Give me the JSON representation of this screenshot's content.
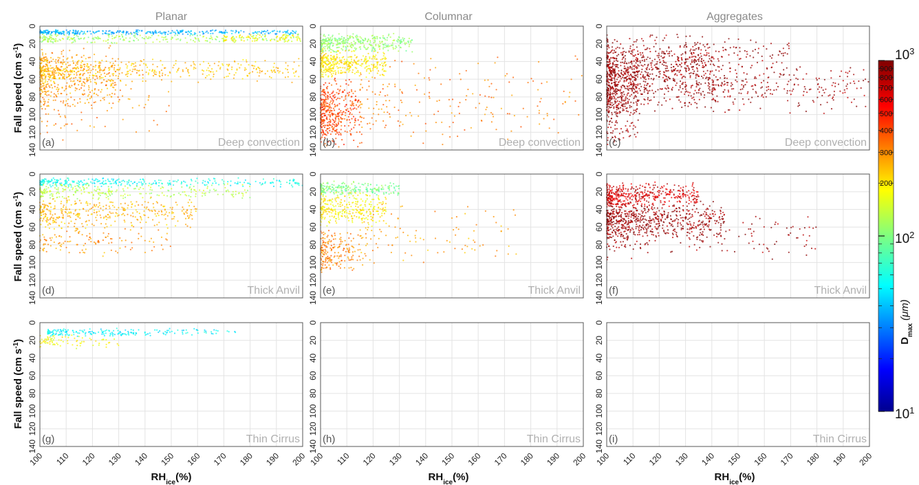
{
  "chart_data": {
    "type": "scatter",
    "layout": "3x3 small multiples",
    "columns": [
      "Planar",
      "Columnar",
      "Aggregates"
    ],
    "rows": [
      "Deep convection",
      "Thick Anvil",
      "Thin Cirrus"
    ],
    "panel_labels": [
      "(a)",
      "(b)",
      "(c)",
      "(d)",
      "(e)",
      "(f)",
      "(g)",
      "(h)",
      "(i)"
    ],
    "xlabel": "RH",
    "xlabel_sub": "ice",
    "xlabel_suffix": "(%)",
    "ylabel": "Fall speed (cm s",
    "ylabel_sup": "-1",
    "ylabel_end": ")",
    "xlim": [
      100,
      200
    ],
    "ylim": [
      0,
      140
    ],
    "y_inverted": true,
    "xticks": [
      100,
      110,
      120,
      130,
      140,
      150,
      160,
      170,
      180,
      190,
      200
    ],
    "yticks": [
      0,
      20,
      40,
      60,
      80,
      100,
      120,
      140
    ],
    "grid": true,
    "colorbar": {
      "label": "D",
      "label_sub": "max",
      "label_unit": "(μm)",
      "scale": "log",
      "range": [
        10,
        1000
      ],
      "colormap": "jet",
      "major_ticks": [
        {
          "value": 10,
          "base": "10",
          "exp": "1"
        },
        {
          "value": 100,
          "base": "10",
          "exp": "2"
        },
        {
          "value": 1000,
          "base": "10",
          "exp": "3"
        }
      ],
      "minor_tick_labels": [
        "200",
        "300",
        "400",
        "500",
        "600",
        "700",
        "800",
        "900"
      ],
      "minor_tick_values": [
        200,
        300,
        400,
        500,
        600,
        700,
        800,
        900
      ]
    },
    "panels": [
      {
        "id": "a",
        "column": "Planar",
        "regime": "Deep convection",
        "empty": false,
        "clusters": [
          {
            "x": [
              100,
              200
            ],
            "y": [
              4,
              10
            ],
            "dmax": 40,
            "n": 340
          },
          {
            "x": [
              100,
              200
            ],
            "y": [
              8,
              20
            ],
            "dmax": 120,
            "n": 260
          },
          {
            "x": [
              170,
              200
            ],
            "y": [
              8,
              18
            ],
            "dmax": 180,
            "n": 90
          },
          {
            "x": [
              100,
              130
            ],
            "y": [
              20,
              95
            ],
            "dmax": 280,
            "n": 420
          },
          {
            "x": [
              100,
              200
            ],
            "y": [
              35,
              65
            ],
            "dmax": 240,
            "n": 420
          },
          {
            "x": [
              100,
              150
            ],
            "y": [
              40,
              130
            ],
            "dmax": 320,
            "n": 110
          }
        ]
      },
      {
        "id": "b",
        "column": "Columnar",
        "regime": "Deep convection",
        "empty": false,
        "clusters": [
          {
            "x": [
              100,
              135
            ],
            "y": [
              8,
              30
            ],
            "dmax": 110,
            "n": 360
          },
          {
            "x": [
              100,
              125
            ],
            "y": [
              25,
              60
            ],
            "dmax": 200,
            "n": 380
          },
          {
            "x": [
              100,
              115
            ],
            "y": [
              55,
              140
            ],
            "dmax": 420,
            "n": 420
          },
          {
            "x": [
              115,
              200
            ],
            "y": [
              30,
              140
            ],
            "dmax": 330,
            "n": 200
          }
        ]
      },
      {
        "id": "c",
        "column": "Aggregates",
        "regime": "Deep convection",
        "empty": false,
        "clusters": [
          {
            "x": [
              100,
              140
            ],
            "y": [
              8,
              100
            ],
            "dmax": 900,
            "n": 900
          },
          {
            "x": [
              100,
              112
            ],
            "y": [
              40,
              140
            ],
            "dmax": 900,
            "n": 260
          },
          {
            "x": [
              140,
              200
            ],
            "y": [
              40,
              100
            ],
            "dmax": 900,
            "n": 260
          },
          {
            "x": [
              130,
              170
            ],
            "y": [
              10,
              50
            ],
            "dmax": 900,
            "n": 120
          }
        ]
      },
      {
        "id": "d",
        "column": "Planar",
        "regime": "Thick Anvil",
        "empty": false,
        "clusters": [
          {
            "x": [
              100,
              200
            ],
            "y": [
              4,
              15
            ],
            "dmax": 60,
            "n": 300
          },
          {
            "x": [
              100,
              180
            ],
            "y": [
              10,
              30
            ],
            "dmax": 130,
            "n": 260
          },
          {
            "x": [
              100,
              160
            ],
            "y": [
              25,
              65
            ],
            "dmax": 250,
            "n": 380
          },
          {
            "x": [
              100,
              150
            ],
            "y": [
              60,
              95
            ],
            "dmax": 290,
            "n": 120
          }
        ]
      },
      {
        "id": "e",
        "column": "Columnar",
        "regime": "Thick Anvil",
        "empty": false,
        "clusters": [
          {
            "x": [
              100,
              130
            ],
            "y": [
              8,
              25
            ],
            "dmax": 100,
            "n": 220
          },
          {
            "x": [
              100,
              125
            ],
            "y": [
              20,
              60
            ],
            "dmax": 190,
            "n": 300
          },
          {
            "x": [
              100,
              115
            ],
            "y": [
              60,
              115
            ],
            "dmax": 320,
            "n": 200
          },
          {
            "x": [
              115,
              175
            ],
            "y": [
              30,
              110
            ],
            "dmax": 280,
            "n": 110
          }
        ]
      },
      {
        "id": "f",
        "column": "Aggregates",
        "regime": "Thick Anvil",
        "empty": false,
        "clusters": [
          {
            "x": [
              100,
              135
            ],
            "y": [
              8,
              40
            ],
            "dmax": 700,
            "n": 420
          },
          {
            "x": [
              100,
              145
            ],
            "y": [
              30,
              75
            ],
            "dmax": 900,
            "n": 600
          },
          {
            "x": [
              100,
              180
            ],
            "y": [
              40,
              100
            ],
            "dmax": 900,
            "n": 180
          }
        ]
      },
      {
        "id": "g",
        "column": "Planar",
        "regime": "Thin Cirrus",
        "empty": false,
        "clusters": [
          {
            "x": [
              103,
              175
            ],
            "y": [
              6,
              16
            ],
            "dmax": 55,
            "n": 200
          },
          {
            "x": [
              100,
              130
            ],
            "y": [
              12,
              30
            ],
            "dmax": 180,
            "n": 80
          }
        ]
      },
      {
        "id": "h",
        "column": "Columnar",
        "regime": "Thin Cirrus",
        "empty": true,
        "clusters": []
      },
      {
        "id": "i",
        "column": "Aggregates",
        "regime": "Thin Cirrus",
        "empty": true,
        "clusters": []
      }
    ]
  }
}
